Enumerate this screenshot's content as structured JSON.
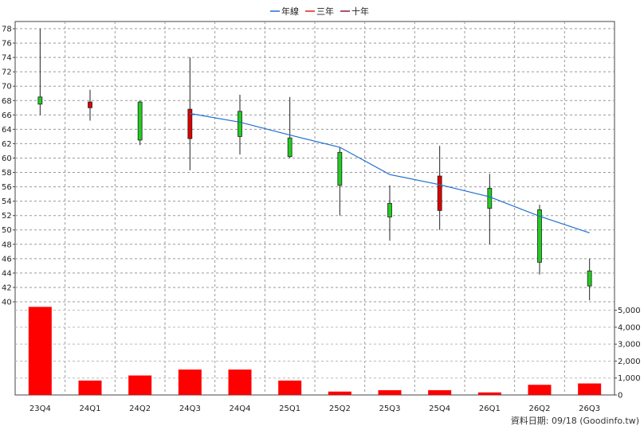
{
  "chart_data": {
    "type": "candlestick",
    "legend": [
      {
        "label": "年線",
        "color": "#1f6fd0"
      },
      {
        "label": "三年",
        "color": "#e02020"
      },
      {
        "label": "十年",
        "color": "#8a1a3a"
      }
    ],
    "categories": [
      "23Q4",
      "24Q1",
      "24Q2",
      "24Q3",
      "24Q4",
      "25Q1",
      "25Q2",
      "25Q3",
      "25Q4",
      "26Q1",
      "26Q2",
      "26Q3"
    ],
    "price_ylim": [
      40,
      79
    ],
    "price_yticks": [
      "40",
      "42",
      "44",
      "46",
      "48",
      "50",
      "52",
      "54",
      "56",
      "58",
      "60",
      "62",
      "64",
      "66",
      "68",
      "70",
      "72",
      "74",
      "76",
      "78"
    ],
    "candles": [
      {
        "open": 67.5,
        "close": 68.5,
        "high": 78.0,
        "low": 66.0
      },
      {
        "open": 67.8,
        "close": 67.0,
        "high": 69.5,
        "low": 65.2
      },
      {
        "open": 62.5,
        "close": 67.8,
        "high": 68.0,
        "low": 61.8
      },
      {
        "open": 66.8,
        "close": 62.7,
        "high": 74.0,
        "low": 58.3
      },
      {
        "open": 63.0,
        "close": 66.5,
        "high": 68.8,
        "low": 60.5
      },
      {
        "open": 60.2,
        "close": 62.8,
        "high": 68.5,
        "low": 60.0
      },
      {
        "open": 56.2,
        "close": 60.8,
        "high": 61.5,
        "low": 52.0
      },
      {
        "open": 51.8,
        "close": 53.7,
        "high": 56.2,
        "low": 48.5
      },
      {
        "open": 57.5,
        "close": 52.7,
        "high": 61.7,
        "low": 50.0
      },
      {
        "open": 53.0,
        "close": 55.8,
        "high": 57.8,
        "low": 48.0
      },
      {
        "open": 45.5,
        "close": 52.8,
        "high": 53.5,
        "low": 43.8
      },
      {
        "open": 42.2,
        "close": 44.3,
        "high": 46.0,
        "low": 40.2
      }
    ],
    "annual_line": {
      "start_index": 3,
      "values": [
        66.2,
        65.0,
        63.2,
        61.5,
        57.7,
        56.3,
        54.6,
        51.9,
        49.6
      ]
    },
    "volume": {
      "values": [
        5200,
        850,
        1150,
        1500,
        1500,
        850,
        200,
        280,
        280,
        150,
        600,
        680
      ],
      "ylim": [
        0,
        5500
      ],
      "yticks": [
        "0",
        "1,000",
        "2,000",
        "3,000",
        "4,000",
        "5,000"
      ],
      "color": "#ff0000"
    },
    "up_color": "#22cc22",
    "down_color": "#dd0000"
  },
  "footer": "資料日期: 09/18 (Goodinfo.tw)"
}
